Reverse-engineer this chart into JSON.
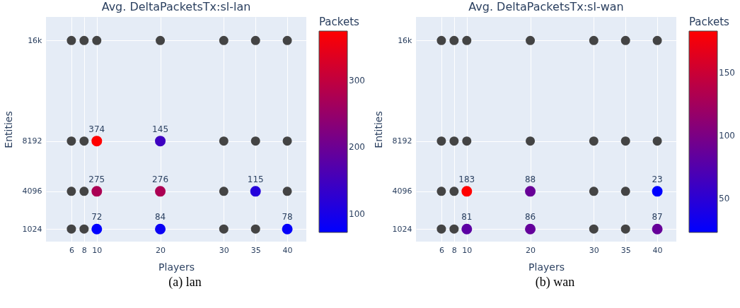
{
  "chart_data": [
    {
      "type": "scatter",
      "title": "Avg. DeltaPacketsTx:sl-lan",
      "xlabel": "Players",
      "ylabel": "Entities",
      "clabel": "Packets",
      "annotations": [
        "(a) lan",
        {
          "text": "374",
          "x": 10,
          "y": 8192
        },
        {
          "text": "145",
          "x": 20,
          "y": 8192
        },
        {
          "text": "275",
          "x": 10,
          "y": 4096
        },
        {
          "text": "276",
          "x": 20,
          "y": 4096
        },
        {
          "text": "115",
          "x": 35,
          "y": 4096
        },
        {
          "text": "72",
          "x": 10,
          "y": 1024
        },
        {
          "text": "84",
          "x": 20,
          "y": 1024
        },
        {
          "text": "78",
          "x": 40,
          "y": 1024
        }
      ],
      "xlim": [
        2,
        43
      ],
      "xticks": [
        6,
        8,
        10,
        20,
        30,
        35,
        40
      ],
      "ylim": [
        0,
        18300
      ],
      "yticks": [
        1024,
        4096,
        8192,
        {
          "value": 16384,
          "label": "16k"
        }
      ],
      "clim": [
        72,
        374
      ],
      "cticks": [
        100,
        200,
        300
      ],
      "grid": true,
      "marker": "circle",
      "series": [
        {
          "color": "#444444",
          "x": [
            6,
            8,
            10,
            20,
            30,
            35,
            40,
            6,
            8,
            30,
            35,
            40,
            6,
            8,
            30,
            40,
            6,
            8,
            30,
            35
          ],
          "values": [
            16384,
            16384,
            16384,
            16384,
            16384,
            16384,
            16384,
            8192,
            8192,
            8192,
            8192,
            8192,
            4096,
            4096,
            4096,
            4096,
            1024,
            1024,
            1024,
            1024
          ]
        },
        {
          "x": [
            10,
            20,
            10,
            20,
            35,
            10,
            20,
            40
          ],
          "values": [
            8192,
            8192,
            4096,
            4096,
            4096,
            1024,
            1024,
            1024
          ],
          "cvalues": [
            374,
            145,
            275,
            276,
            115,
            72,
            84,
            78
          ],
          "colors": [
            "#ff0000",
            "#3e00c1",
            "#ab0054",
            "#ac0053",
            "#2400db",
            "#0000ff",
            "#0a00f5",
            "#0500fa"
          ]
        }
      ]
    },
    {
      "type": "scatter",
      "title": "Avg. DeltaPacketsTx:sl-wan",
      "xlabel": "Players",
      "ylabel": "Entities",
      "clabel": "Packets",
      "annotations": [
        "(b) wan",
        {
          "text": "183",
          "x": 10,
          "y": 4096
        },
        {
          "text": "88",
          "x": 20,
          "y": 4096
        },
        {
          "text": "23",
          "x": 40,
          "y": 4096
        },
        {
          "text": "81",
          "x": 10,
          "y": 1024
        },
        {
          "text": "86",
          "x": 20,
          "y": 1024
        },
        {
          "text": "87",
          "x": 40,
          "y": 1024
        }
      ],
      "xlim": [
        2,
        43
      ],
      "xticks": [
        6,
        8,
        10,
        20,
        30,
        35,
        40
      ],
      "ylim": [
        0,
        18300
      ],
      "yticks": [
        1024,
        4096,
        8192,
        {
          "value": 16384,
          "label": "16k"
        }
      ],
      "clim": [
        23,
        183
      ],
      "cticks": [
        50,
        100,
        150
      ],
      "grid": true,
      "marker": "circle",
      "series": [
        {
          "color": "#444444",
          "x": [
            6,
            8,
            10,
            20,
            30,
            35,
            40,
            6,
            8,
            10,
            20,
            30,
            35,
            40,
            6,
            8,
            30,
            35,
            6,
            8,
            30,
            35
          ],
          "values": [
            16384,
            16384,
            16384,
            16384,
            16384,
            16384,
            16384,
            8192,
            8192,
            8192,
            8192,
            8192,
            8192,
            8192,
            4096,
            4096,
            4096,
            4096,
            1024,
            1024,
            1024,
            1024
          ]
        },
        {
          "x": [
            10,
            20,
            40,
            10,
            20,
            40
          ],
          "values": [
            4096,
            4096,
            4096,
            1024,
            1024,
            1024
          ],
          "cvalues": [
            183,
            88,
            23,
            81,
            86,
            87
          ],
          "colors": [
            "#ff0000",
            "#680097",
            "#0000ff",
            "#5c00a3",
            "#64009b",
            "#660099"
          ]
        }
      ]
    }
  ]
}
